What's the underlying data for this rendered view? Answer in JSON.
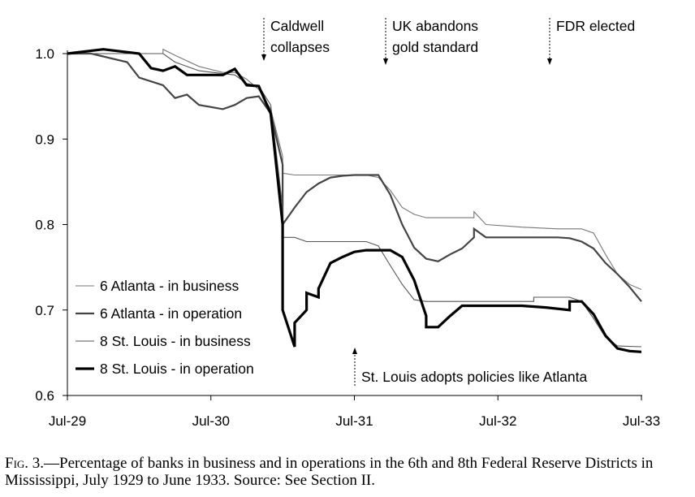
{
  "chart_data": {
    "type": "line",
    "title": "",
    "xlabel": "",
    "ylabel": "",
    "x_ticks": [
      "Jul-29",
      "Jul-30",
      "Jul-31",
      "Jul-32",
      "Jul-33"
    ],
    "x_range": [
      "1929-07",
      "1933-07"
    ],
    "y_ticks": [
      "0.6",
      "0.7",
      "0.8",
      "0.9",
      "1.0"
    ],
    "ylim": [
      0.6,
      1.0
    ],
    "grid": false,
    "legend_position": "bottom-left",
    "annotations": [
      {
        "lines": [
          "Caldwell",
          "collapses"
        ],
        "x": "1930-11",
        "arrow": "down"
      },
      {
        "lines": [
          "UK abandons",
          "gold standard"
        ],
        "x": "1931-09",
        "arrow": "down"
      },
      {
        "lines": [
          "FDR elected"
        ],
        "x": "1932-11",
        "arrow": "down"
      },
      {
        "lines": [
          "St. Louis adopts policies like Atlanta"
        ],
        "x": "1931-07",
        "arrow": "up"
      }
    ],
    "series": [
      {
        "name": "6 Atlanta - in business",
        "color": "#777777",
        "points": [
          [
            "1929-07",
            1.0
          ],
          [
            "1930-03",
            1.0
          ],
          [
            "1930-03",
            1.005
          ],
          [
            "1930-04",
            0.998
          ],
          [
            "1930-06",
            0.985
          ],
          [
            "1930-08",
            0.978
          ],
          [
            "1930-09",
            0.978
          ],
          [
            "1930-10",
            0.97
          ],
          [
            "1930-11",
            0.958
          ],
          [
            "1930-12",
            0.935
          ],
          [
            "1931-01",
            0.88
          ],
          [
            "1931-01",
            0.86
          ],
          [
            "1931-02",
            0.858
          ],
          [
            "1931-03",
            0.858
          ],
          [
            "1931-08",
            0.858
          ],
          [
            "1931-09",
            0.855
          ],
          [
            "1931-10",
            0.84
          ],
          [
            "1931-11",
            0.82
          ],
          [
            "1931-12",
            0.812
          ],
          [
            "1932-01",
            0.808
          ],
          [
            "1932-05",
            0.808
          ],
          [
            "1932-05",
            0.815
          ],
          [
            "1932-06",
            0.8
          ],
          [
            "1932-09",
            0.797
          ],
          [
            "1932-12",
            0.795
          ],
          [
            "1933-02",
            0.795
          ],
          [
            "1933-03",
            0.79
          ],
          [
            "1933-04",
            0.765
          ],
          [
            "1933-05",
            0.742
          ],
          [
            "1933-06",
            0.73
          ],
          [
            "1933-07",
            0.724
          ]
        ]
      },
      {
        "name": "6 Atlanta - in operation",
        "color": "#444444",
        "points": [
          [
            "1929-07",
            1.0
          ],
          [
            "1929-09",
            1.0
          ],
          [
            "1929-12",
            0.99
          ],
          [
            "1930-01",
            0.972
          ],
          [
            "1930-03",
            0.963
          ],
          [
            "1930-04",
            0.948
          ],
          [
            "1930-05",
            0.952
          ],
          [
            "1930-06",
            0.94
          ],
          [
            "1930-08",
            0.935
          ],
          [
            "1930-09",
            0.94
          ],
          [
            "1930-10",
            0.948
          ],
          [
            "1930-11",
            0.95
          ],
          [
            "1930-12",
            0.93
          ],
          [
            "1931-01",
            0.87
          ],
          [
            "1931-01",
            0.81
          ],
          [
            "1931-01",
            0.8
          ],
          [
            "1931-02",
            0.82
          ],
          [
            "1931-03",
            0.838
          ],
          [
            "1931-04",
            0.848
          ],
          [
            "1931-05",
            0.855
          ],
          [
            "1931-06",
            0.857
          ],
          [
            "1931-07",
            0.858
          ],
          [
            "1931-09",
            0.858
          ],
          [
            "1931-10",
            0.835
          ],
          [
            "1931-11",
            0.8
          ],
          [
            "1931-12",
            0.773
          ],
          [
            "1932-01",
            0.76
          ],
          [
            "1932-02",
            0.757
          ],
          [
            "1932-03",
            0.765
          ],
          [
            "1932-04",
            0.772
          ],
          [
            "1932-05",
            0.785
          ],
          [
            "1932-05",
            0.795
          ],
          [
            "1932-06",
            0.785
          ],
          [
            "1932-07",
            0.785
          ],
          [
            "1932-10",
            0.785
          ],
          [
            "1932-12",
            0.785
          ],
          [
            "1933-01",
            0.784
          ],
          [
            "1933-02",
            0.78
          ],
          [
            "1933-03",
            0.772
          ],
          [
            "1933-04",
            0.755
          ],
          [
            "1933-05",
            0.742
          ],
          [
            "1933-06",
            0.727
          ],
          [
            "1933-07",
            0.71
          ]
        ]
      },
      {
        "name": "8 St. Louis - in business",
        "color": "#555555",
        "points": [
          [
            "1929-07",
            1.0
          ],
          [
            "1930-03",
            1.0
          ],
          [
            "1930-04",
            0.99
          ],
          [
            "1930-06",
            0.98
          ],
          [
            "1930-09",
            0.975
          ],
          [
            "1930-10",
            0.965
          ],
          [
            "1930-11",
            0.962
          ],
          [
            "1930-12",
            0.94
          ],
          [
            "1931-01",
            0.82
          ],
          [
            "1931-01",
            0.785
          ],
          [
            "1931-02",
            0.785
          ],
          [
            "1931-03",
            0.78
          ],
          [
            "1931-08",
            0.78
          ],
          [
            "1931-09",
            0.775
          ],
          [
            "1931-10",
            0.752
          ],
          [
            "1931-11",
            0.73
          ],
          [
            "1931-12",
            0.712
          ],
          [
            "1932-01",
            0.71
          ],
          [
            "1932-10",
            0.71
          ],
          [
            "1932-10",
            0.715
          ],
          [
            "1933-01",
            0.715
          ],
          [
            "1933-02",
            0.71
          ],
          [
            "1933-03",
            0.69
          ],
          [
            "1933-04",
            0.668
          ],
          [
            "1933-05",
            0.658
          ],
          [
            "1933-07",
            0.657
          ]
        ]
      },
      {
        "name": "8 St. Louis - in operation",
        "color": "#000000",
        "points": [
          [
            "1929-07",
            1.0
          ],
          [
            "1929-10",
            1.005
          ],
          [
            "1930-01",
            1.0
          ],
          [
            "1930-02",
            0.983
          ],
          [
            "1930-03",
            0.98
          ],
          [
            "1930-04",
            0.985
          ],
          [
            "1930-05",
            0.975
          ],
          [
            "1930-08",
            0.975
          ],
          [
            "1930-09",
            0.982
          ],
          [
            "1930-10",
            0.963
          ],
          [
            "1930-11",
            0.962
          ],
          [
            "1930-12",
            0.93
          ],
          [
            "1931-01",
            0.8
          ],
          [
            "1931-01",
            0.7
          ],
          [
            "1931-02",
            0.657
          ],
          [
            "1931-02",
            0.66
          ],
          [
            "1931-02",
            0.685
          ],
          [
            "1931-03",
            0.7
          ],
          [
            "1931-03",
            0.72
          ],
          [
            "1931-04",
            0.715
          ],
          [
            "1931-04",
            0.725
          ],
          [
            "1931-05",
            0.755
          ],
          [
            "1931-06",
            0.762
          ],
          [
            "1931-07",
            0.768
          ],
          [
            "1931-08",
            0.77
          ],
          [
            "1931-10",
            0.77
          ],
          [
            "1931-11",
            0.762
          ],
          [
            "1931-12",
            0.735
          ],
          [
            "1932-01",
            0.693
          ],
          [
            "1932-01",
            0.68
          ],
          [
            "1932-02",
            0.68
          ],
          [
            "1932-03",
            0.693
          ],
          [
            "1932-04",
            0.705
          ],
          [
            "1932-06",
            0.705
          ],
          [
            "1932-09",
            0.705
          ],
          [
            "1932-11",
            0.703
          ],
          [
            "1933-01",
            0.7
          ],
          [
            "1933-01",
            0.71
          ],
          [
            "1933-02",
            0.71
          ],
          [
            "1933-03",
            0.695
          ],
          [
            "1933-04",
            0.67
          ],
          [
            "1933-05",
            0.655
          ],
          [
            "1933-06",
            0.652
          ],
          [
            "1933-07",
            0.651
          ]
        ]
      }
    ]
  },
  "caption": {
    "fig": "Fig. 3.",
    "text": "—Percentage of banks in business and in operations in the 6th and 8th Federal Reserve Districts in Mississippi, July 1929 to June 1933. Source: See Section II."
  }
}
